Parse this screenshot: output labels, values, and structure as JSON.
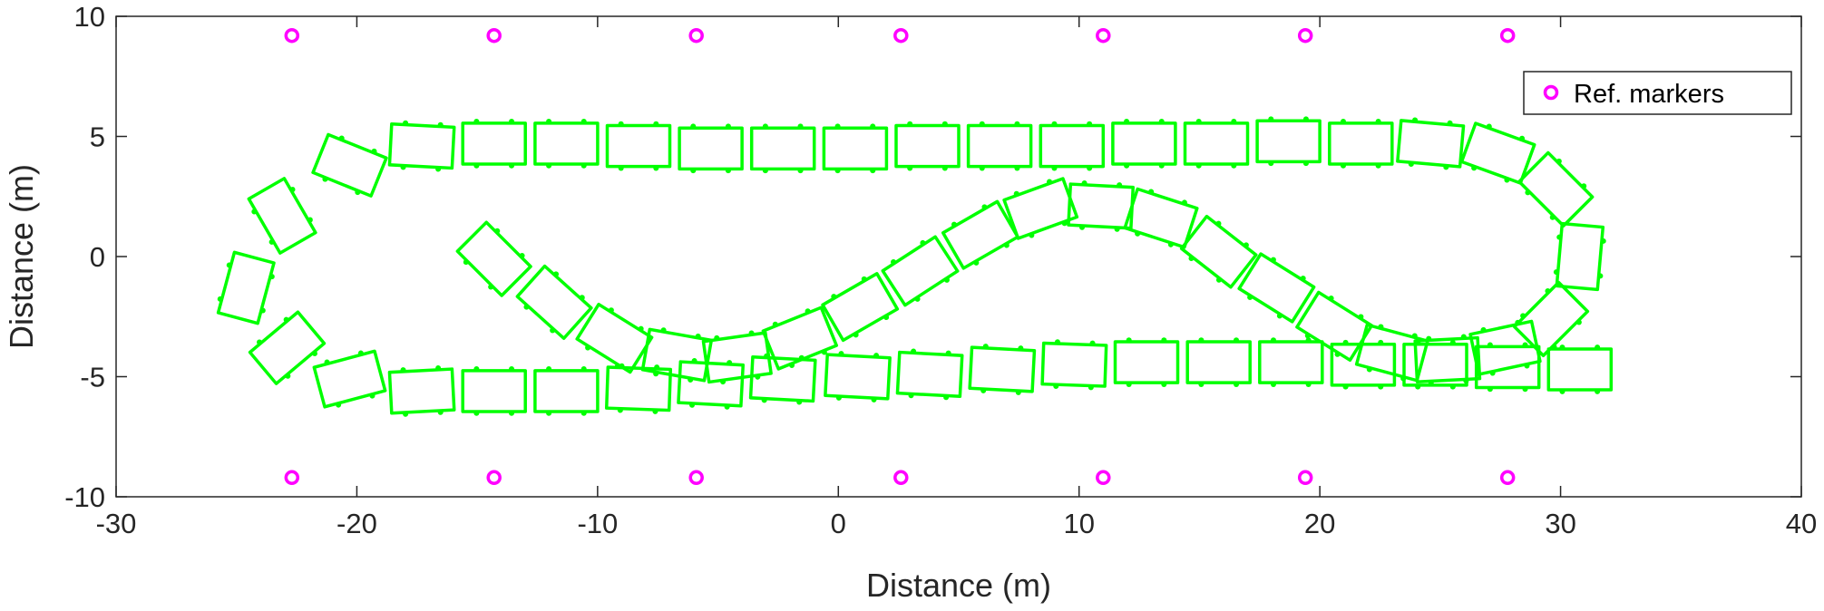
{
  "chart_data": {
    "type": "scatter",
    "title": "",
    "xlabel": "Distance (m)",
    "ylabel": "Distance (m)",
    "xlim": [
      -30,
      40
    ],
    "ylim": [
      -10,
      10
    ],
    "xticks": [
      -30,
      -20,
      -10,
      0,
      10,
      20,
      30,
      40
    ],
    "yticks": [
      10,
      5,
      0,
      -5,
      -10
    ],
    "grid": false,
    "legend_position": "top-right",
    "colors": {
      "markers": "#ff00ff",
      "vehicle": "#00ff00",
      "axis": "#262626"
    },
    "series": [
      {
        "name": "Ref. markers",
        "marker": "circle",
        "points": [
          [
            -22.7,
            9.2
          ],
          [
            -14.3,
            9.2
          ],
          [
            -5.9,
            9.2
          ],
          [
            2.6,
            9.2
          ],
          [
            11.0,
            9.2
          ],
          [
            19.4,
            9.2
          ],
          [
            27.8,
            9.2
          ],
          [
            -22.7,
            -9.2
          ],
          [
            -14.3,
            -9.2
          ],
          [
            -5.9,
            -9.2
          ],
          [
            2.6,
            -9.2
          ],
          [
            11.0,
            -9.2
          ],
          [
            19.4,
            -9.2
          ],
          [
            27.8,
            -9.2
          ]
        ]
      },
      {
        "marker": "rectangle-outline",
        "poses": [
          [
            -14.3,
            -0.1,
            -45
          ],
          [
            -11.8,
            -1.9,
            -42
          ],
          [
            -9.3,
            -3.4,
            -32
          ],
          [
            -6.7,
            -4.1,
            -10
          ],
          [
            -4.2,
            -4.2,
            8
          ],
          [
            -1.6,
            -3.4,
            22
          ],
          [
            0.9,
            -2.1,
            30
          ],
          [
            3.4,
            -0.6,
            33
          ],
          [
            5.9,
            0.9,
            30
          ],
          [
            8.4,
            2.0,
            20
          ],
          [
            10.9,
            2.1,
            -3
          ],
          [
            13.4,
            1.6,
            -18
          ],
          [
            15.8,
            0.2,
            -38
          ],
          [
            18.2,
            -1.3,
            -32
          ],
          [
            20.6,
            -2.9,
            -32
          ],
          [
            23.0,
            -4.0,
            -15
          ],
          [
            25.3,
            -4.3,
            3
          ],
          [
            27.7,
            -3.8,
            12
          ],
          [
            29.6,
            -2.6,
            45
          ],
          [
            30.8,
            0.0,
            85
          ],
          [
            29.8,
            2.8,
            135
          ],
          [
            27.4,
            4.3,
            160
          ],
          [
            24.6,
            4.7,
            175
          ],
          [
            21.7,
            4.7,
            180
          ],
          [
            18.7,
            4.8,
            180
          ],
          [
            15.7,
            4.7,
            180
          ],
          [
            12.7,
            4.7,
            180
          ],
          [
            9.7,
            4.6,
            180
          ],
          [
            6.7,
            4.6,
            180
          ],
          [
            3.7,
            4.6,
            180
          ],
          [
            0.7,
            4.5,
            180
          ],
          [
            -2.3,
            4.5,
            180
          ],
          [
            -5.3,
            4.5,
            180
          ],
          [
            -8.3,
            4.6,
            180
          ],
          [
            -11.3,
            4.7,
            180
          ],
          [
            -14.3,
            4.7,
            180
          ],
          [
            -17.3,
            4.6,
            177
          ],
          [
            -20.3,
            3.8,
            158
          ],
          [
            -23.1,
            1.7,
            120
          ],
          [
            -24.6,
            -1.3,
            75
          ],
          [
            -22.9,
            -3.8,
            40
          ],
          [
            -20.3,
            -5.1,
            15
          ],
          [
            -17.3,
            -5.6,
            3
          ],
          [
            -14.3,
            -5.6,
            0
          ],
          [
            -11.3,
            -5.6,
            0
          ],
          [
            -8.3,
            -5.5,
            -2
          ],
          [
            -5.3,
            -5.3,
            -3
          ],
          [
            -2.3,
            -5.1,
            -3
          ],
          [
            0.8,
            -5.0,
            -3
          ],
          [
            3.8,
            -4.9,
            -3
          ],
          [
            6.8,
            -4.7,
            -3
          ],
          [
            9.8,
            -4.5,
            -2
          ],
          [
            12.8,
            -4.4,
            0
          ],
          [
            15.8,
            -4.4,
            0
          ],
          [
            18.8,
            -4.4,
            0
          ],
          [
            21.8,
            -4.5,
            0
          ],
          [
            24.8,
            -4.5,
            0
          ],
          [
            27.8,
            -4.6,
            0
          ],
          [
            30.8,
            -4.7,
            0
          ]
        ]
      }
    ]
  }
}
